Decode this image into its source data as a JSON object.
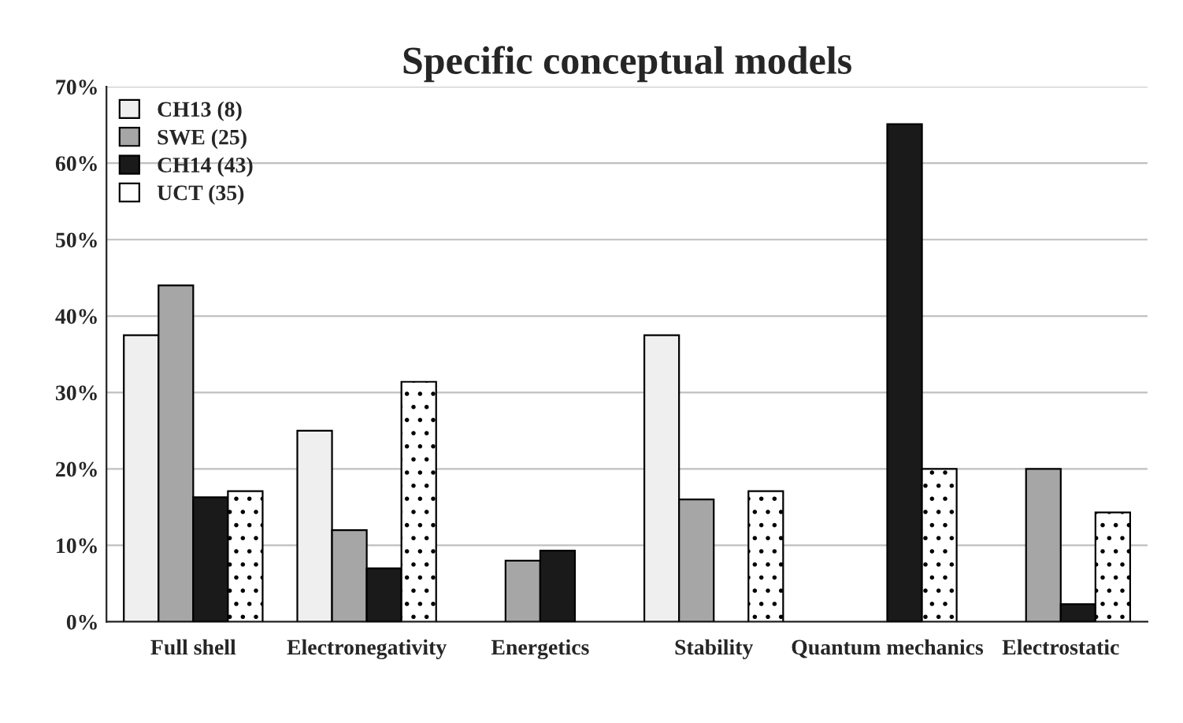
{
  "chart_data": {
    "type": "bar",
    "title": "Specific conceptual models",
    "categories": [
      "Full shell",
      "Electronegativity",
      "Energetics",
      "Stability",
      "Quantum mechanics",
      "Electrostatic"
    ],
    "series": [
      {
        "name": "CH13 (8)",
        "color": "#efefef",
        "values": [
          37.5,
          25,
          null,
          37.5,
          null,
          null
        ]
      },
      {
        "name": "SWE (25)",
        "color": "#a6a6a6",
        "values": [
          44,
          12,
          8,
          16,
          null,
          20
        ]
      },
      {
        "name": "CH14 (43)",
        "color": "#1a1a1a",
        "values": [
          16.3,
          7.0,
          9.3,
          null,
          65.1,
          2.3
        ]
      },
      {
        "name": "UCT (35)",
        "color": "#ffffff",
        "values": [
          17.1,
          31.4,
          null,
          17.1,
          20,
          14.3
        ]
      }
    ],
    "ylim": [
      0,
      70
    ],
    "yticks": [
      {
        "value": 0,
        "label": "0%"
      },
      {
        "value": 10,
        "label": "10%"
      },
      {
        "value": 20,
        "label": "20%"
      },
      {
        "value": 30,
        "label": "30%"
      },
      {
        "value": 40,
        "label": "40%"
      },
      {
        "value": 50,
        "label": "50%"
      },
      {
        "value": 60,
        "label": "60%"
      },
      {
        "value": 70,
        "label": "70%"
      }
    ],
    "grid": "y",
    "legend": "top left"
  }
}
